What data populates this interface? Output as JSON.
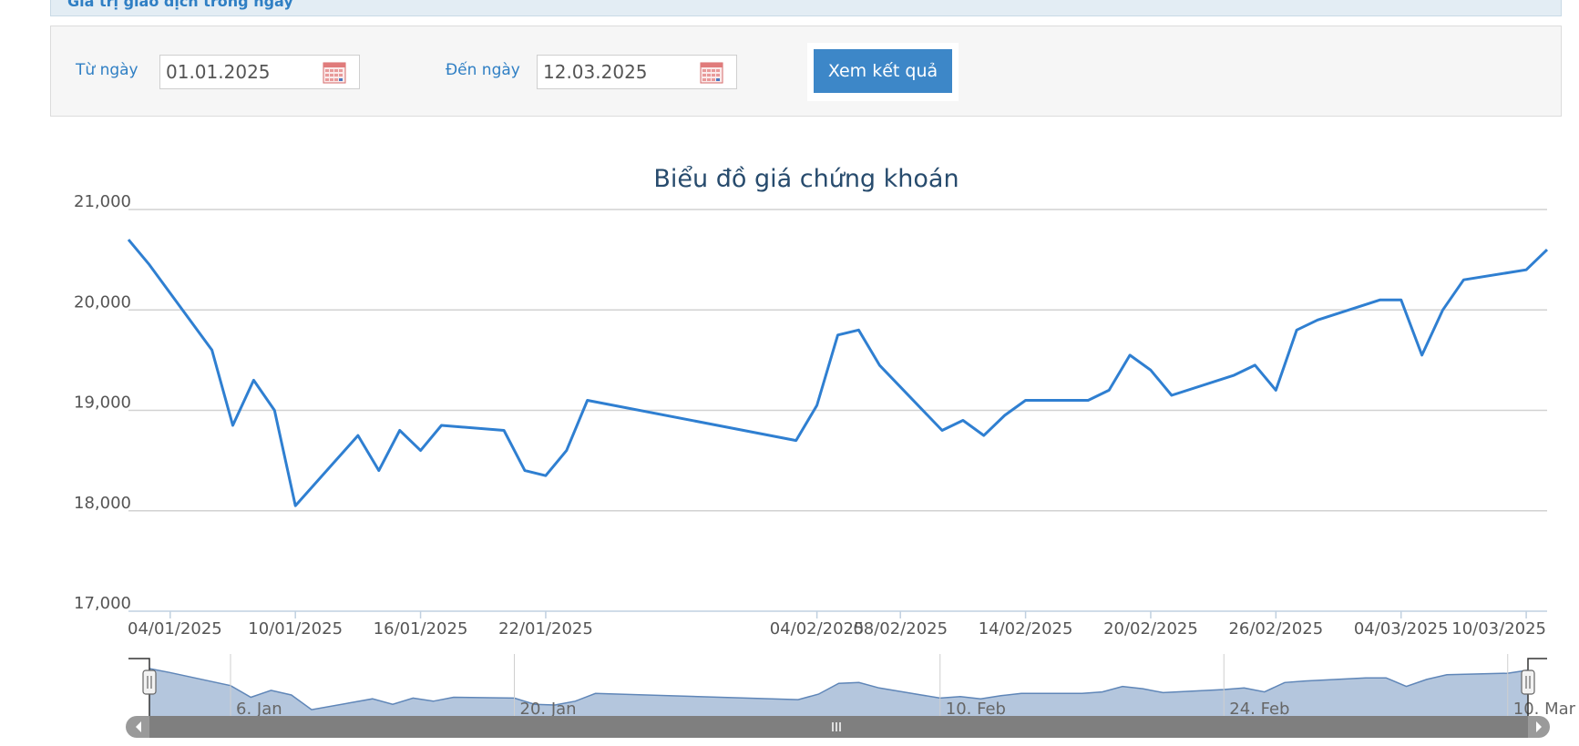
{
  "header": {
    "strip_text": "Giá trị giao dịch trong ngày"
  },
  "filter": {
    "from_label": "Từ ngày",
    "from_value": "01.01.2025",
    "to_label": "Đến ngày",
    "to_value": "12.03.2025",
    "submit_label": "Xem kết quả"
  },
  "colors": {
    "accent": "#3d87c8",
    "line": "#2f7fd1",
    "navigator_fill": "#b4c6dd",
    "label_blue": "#2f7fc4"
  },
  "chart_data": {
    "type": "line",
    "title": "Biểu đồ giá chứng khoán",
    "xlabel": "",
    "ylabel": "",
    "ylim": [
      17000,
      21000
    ],
    "y_ticks": [
      "21,000",
      "20,000",
      "19,000",
      "18,000",
      "17,000"
    ],
    "y_tick_values": [
      21000,
      20000,
      19000,
      18000,
      17000
    ],
    "x_tick_labels": [
      {
        "date": "2025-01-04",
        "label": "04/01/2025"
      },
      {
        "date": "2025-01-10",
        "label": "10/01/2025"
      },
      {
        "date": "2025-01-16",
        "label": "16/01/2025"
      },
      {
        "date": "2025-01-22",
        "label": "22/01/2025"
      },
      {
        "date": "2025-02-04",
        "label": "04/02/2025"
      },
      {
        "date": "2025-02-08",
        "label": "08/02/2025"
      },
      {
        "date": "2025-02-14",
        "label": "14/02/2025"
      },
      {
        "date": "2025-02-20",
        "label": "20/02/2025"
      },
      {
        "date": "2025-02-26",
        "label": "26/02/2025"
      },
      {
        "date": "2025-03-04",
        "label": "04/03/2025"
      },
      {
        "date": "2025-03-10",
        "label": "10/03/2025"
      }
    ],
    "navigator_labels": [
      {
        "date": "2025-01-06",
        "label": "6. Jan"
      },
      {
        "date": "2025-01-20",
        "label": "20. Jan"
      },
      {
        "date": "2025-02-10",
        "label": "10. Feb"
      },
      {
        "date": "2025-02-24",
        "label": "24. Feb"
      },
      {
        "date": "2025-03-10",
        "label": "10. Mar"
      }
    ],
    "grid": true,
    "series": [
      {
        "values": [
          [
            "2025-01-02",
            20700
          ],
          [
            "2025-01-03",
            20450
          ],
          [
            "2025-01-06",
            19600
          ],
          [
            "2025-01-07",
            18850
          ],
          [
            "2025-01-08",
            19300
          ],
          [
            "2025-01-09",
            19000
          ],
          [
            "2025-01-10",
            18050
          ],
          [
            "2025-01-13",
            18750
          ],
          [
            "2025-01-14",
            18400
          ],
          [
            "2025-01-15",
            18800
          ],
          [
            "2025-01-16",
            18600
          ],
          [
            "2025-01-17",
            18850
          ],
          [
            "2025-01-20",
            18800
          ],
          [
            "2025-01-21",
            18400
          ],
          [
            "2025-01-22",
            18350
          ],
          [
            "2025-01-23",
            18600
          ],
          [
            "2025-01-24",
            19100
          ],
          [
            "2025-02-03",
            18700
          ],
          [
            "2025-02-04",
            19050
          ],
          [
            "2025-02-05",
            19750
          ],
          [
            "2025-02-06",
            19800
          ],
          [
            "2025-02-07",
            19450
          ],
          [
            "2025-02-10",
            18800
          ],
          [
            "2025-02-11",
            18900
          ],
          [
            "2025-02-12",
            18750
          ],
          [
            "2025-02-13",
            18950
          ],
          [
            "2025-02-14",
            19100
          ],
          [
            "2025-02-17",
            19100
          ],
          [
            "2025-02-18",
            19200
          ],
          [
            "2025-02-19",
            19550
          ],
          [
            "2025-02-20",
            19400
          ],
          [
            "2025-02-21",
            19150
          ],
          [
            "2025-02-24",
            19350
          ],
          [
            "2025-02-25",
            19450
          ],
          [
            "2025-02-26",
            19200
          ],
          [
            "2025-02-27",
            19800
          ],
          [
            "2025-02-28",
            19900
          ],
          [
            "2025-03-03",
            20100
          ],
          [
            "2025-03-04",
            20100
          ],
          [
            "2025-03-05",
            19550
          ],
          [
            "2025-03-06",
            20000
          ],
          [
            "2025-03-07",
            20300
          ],
          [
            "2025-03-10",
            20400
          ],
          [
            "2025-03-11",
            20600
          ]
        ]
      }
    ]
  }
}
